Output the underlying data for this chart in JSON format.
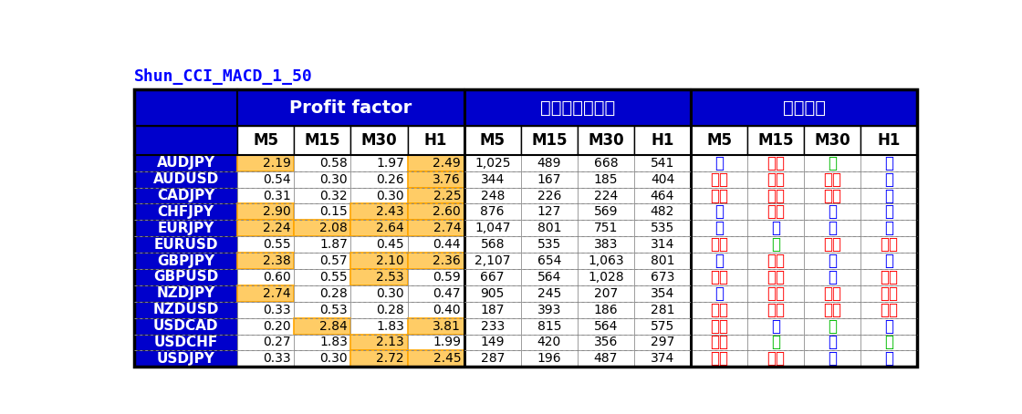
{
  "title": "Shun_CCI_MACD_1_50",
  "title_color": "#0000FF",
  "pairs": [
    "AUDJPY",
    "AUDUSD",
    "CADJPY",
    "CHFJPY",
    "EURJPY",
    "EURUSD",
    "GBPJPY",
    "GBPUSD",
    "NZDJPY",
    "NZDUSD",
    "USDCAD",
    "USDCHF",
    "USDJPY"
  ],
  "profit_factor": {
    "M5": [
      2.19,
      0.54,
      0.31,
      2.9,
      2.24,
      0.55,
      2.38,
      0.6,
      2.74,
      0.33,
      0.2,
      0.27,
      0.33
    ],
    "M15": [
      0.58,
      0.3,
      0.32,
      0.15,
      2.08,
      1.87,
      0.57,
      0.55,
      0.28,
      0.53,
      2.84,
      1.83,
      0.3
    ],
    "M30": [
      1.97,
      0.26,
      0.3,
      2.43,
      2.64,
      0.45,
      2.1,
      2.53,
      0.3,
      0.28,
      1.83,
      2.13,
      2.72
    ],
    "H1": [
      2.49,
      3.76,
      2.25,
      2.6,
      2.74,
      0.44,
      2.36,
      0.59,
      0.47,
      0.4,
      3.81,
      1.99,
      2.45
    ]
  },
  "entry_count": {
    "M5": [
      1025,
      344,
      248,
      876,
      1047,
      568,
      2107,
      667,
      905,
      187,
      233,
      149,
      287
    ],
    "M15": [
      489,
      167,
      226,
      127,
      801,
      535,
      654,
      564,
      245,
      393,
      815,
      420,
      196
    ],
    "M30": [
      668,
      185,
      224,
      569,
      751,
      383,
      1063,
      1028,
      207,
      186,
      564,
      356,
      487
    ],
    "H1": [
      541,
      404,
      464,
      482,
      535,
      314,
      801,
      673,
      354,
      281,
      575,
      297,
      374
    ]
  },
  "recommendation": {
    "M5": [
      "優",
      "不可",
      "不可",
      "優",
      "優",
      "不可",
      "優",
      "不可",
      "優",
      "不可",
      "不可",
      "不可",
      "不可"
    ],
    "M15": [
      "不可",
      "不可",
      "不可",
      "不可",
      "優",
      "良",
      "不可",
      "不可",
      "不可",
      "不可",
      "優",
      "良",
      "不可"
    ],
    "M30": [
      "良",
      "不可",
      "不可",
      "優",
      "優",
      "不可",
      "優",
      "優",
      "不可",
      "不可",
      "良",
      "優",
      "優"
    ],
    "H1": [
      "優",
      "優",
      "優",
      "優",
      "優",
      "不可",
      "優",
      "不可",
      "不可",
      "不可",
      "優",
      "良",
      "優"
    ]
  },
  "rec_colors": {
    "優": "#0000FF",
    "不可": "#FF0000",
    "良": "#00BB00"
  },
  "highlight_threshold": 2.0,
  "highlight_color": "#FFCC66",
  "highlight_border": "#FFA500",
  "header_bg": "#0000CC",
  "header_text": "#FFFFFF",
  "pair_bg": "#0000CC",
  "pair_text": "#FFFFFF",
  "subheader_bg": "#FFFFFF",
  "subheader_text": "#000000",
  "cell_bg": "#FFFFFF",
  "title_fontsize": 13,
  "header1_fontsize": 14,
  "header2_fontsize": 12,
  "cell_fontsize": 10,
  "pair_fontsize": 11,
  "rec_fontsize": 12
}
